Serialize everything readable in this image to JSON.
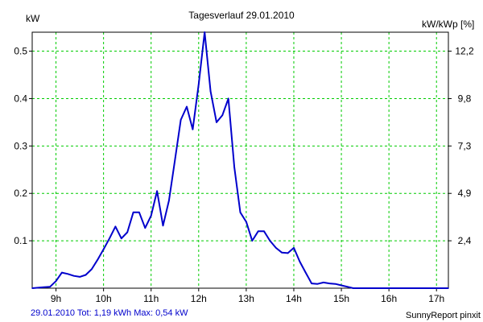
{
  "chart_data": {
    "type": "line",
    "title": "Tagesverlauf 29.01.2010",
    "ylabel_left": "kW",
    "ylabel_right": "kW/kWp [%]",
    "x_unit": "hours",
    "xlim": [
      8.5,
      17.25
    ],
    "ylim": [
      0,
      0.54
    ],
    "grid": true,
    "x_ticks": [
      9,
      10,
      11,
      12,
      13,
      14,
      15,
      16,
      17
    ],
    "x_tick_labels": [
      "9h",
      "10h",
      "11h",
      "12h",
      "13h",
      "14h",
      "15h",
      "16h",
      "17h"
    ],
    "y_ticks_left": [
      0.1,
      0.2,
      0.3,
      0.4,
      0.5
    ],
    "y_tick_labels_left": [
      "0.1",
      "0.2",
      "0.3",
      "0.4",
      "0.5"
    ],
    "y_ticks_right_at": [
      0.1,
      0.2,
      0.3,
      0.4,
      0.5
    ],
    "y_tick_labels_right": [
      "2,4",
      "4,9",
      "7,3",
      "9,8",
      "12,2"
    ],
    "series": [
      {
        "color": "#0000cc",
        "x": [
          8.5,
          8.75,
          8.875,
          9.0,
          9.125,
          9.25,
          9.375,
          9.5,
          9.625,
          9.75,
          9.875,
          10.0,
          10.125,
          10.25,
          10.375,
          10.5,
          10.625,
          10.75,
          10.875,
          11.0,
          11.125,
          11.25,
          11.375,
          11.5,
          11.625,
          11.75,
          11.875,
          12.0,
          12.125,
          12.25,
          12.375,
          12.5,
          12.625,
          12.75,
          12.875,
          13.0,
          13.125,
          13.25,
          13.375,
          13.5,
          13.625,
          13.75,
          13.875,
          14.0,
          14.125,
          14.25,
          14.375,
          14.5,
          14.625,
          14.75,
          14.875,
          15.0,
          15.125,
          15.25,
          15.375,
          15.5,
          15.625,
          15.75,
          15.875,
          16.0,
          16.125,
          16.25,
          16.5,
          16.75,
          17.0,
          17.25
        ],
        "values": [
          0.0,
          0.002,
          0.003,
          0.015,
          0.033,
          0.03,
          0.026,
          0.024,
          0.028,
          0.04,
          0.06,
          0.082,
          0.105,
          0.13,
          0.105,
          0.118,
          0.16,
          0.16,
          0.127,
          0.153,
          0.205,
          0.132,
          0.185,
          0.27,
          0.355,
          0.383,
          0.335,
          0.43,
          0.54,
          0.415,
          0.35,
          0.365,
          0.4,
          0.255,
          0.16,
          0.14,
          0.1,
          0.12,
          0.12,
          0.1,
          0.085,
          0.075,
          0.074,
          0.085,
          0.056,
          0.033,
          0.01,
          0.009,
          0.012,
          0.01,
          0.009,
          0.006,
          0.003,
          0.0,
          0.0,
          0.0,
          0.0,
          0.0,
          0.0,
          0.0,
          0.0,
          0.0,
          0.0,
          0.0,
          0.0,
          0.0
        ]
      }
    ]
  },
  "footer": {
    "summary": "29.01.2010 Tot: 1,19 kWh Max: 0,54 kW",
    "credit": "SunnyReport pinxit"
  },
  "colors": {
    "line": "#0000cc",
    "grid": "#00cc00",
    "summary_text": "#0000cc",
    "axis": "#000000"
  }
}
